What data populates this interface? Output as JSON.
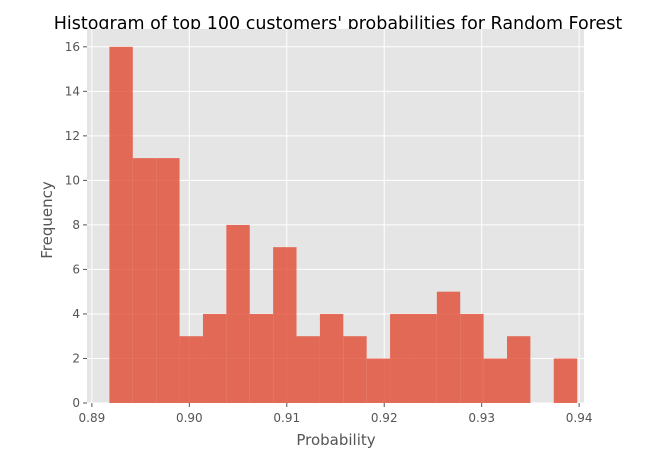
{
  "chart_data": {
    "type": "bar",
    "title": "Histogram of top 100 customers' probabilities for Random Forest",
    "xlabel": "Probability",
    "ylabel": "Frequency",
    "xlim": [
      0.8895,
      0.9405
    ],
    "ylim": [
      0,
      16.8
    ],
    "xticks": [
      0.89,
      0.9,
      0.91,
      0.92,
      0.93,
      0.94
    ],
    "xtick_labels": [
      "0.89",
      "0.90",
      "0.91",
      "0.92",
      "0.93",
      "0.94"
    ],
    "yticks": [
      0,
      2,
      4,
      6,
      8,
      10,
      12,
      14,
      16
    ],
    "ytick_labels": [
      "0",
      "2",
      "4",
      "6",
      "8",
      "10",
      "12",
      "14",
      "16"
    ],
    "bin_edges": [
      0.8918,
      0.8942,
      0.8966,
      0.899,
      0.9014,
      0.9038,
      0.9062,
      0.9086,
      0.911,
      0.9134,
      0.9158,
      0.9182,
      0.9206,
      0.923,
      0.9254,
      0.9278,
      0.9302,
      0.9326,
      0.935,
      0.9374,
      0.9398
    ],
    "values": [
      16,
      11,
      11,
      3,
      4,
      8,
      4,
      7,
      3,
      4,
      3,
      2,
      4,
      4,
      5,
      4,
      2,
      3,
      0,
      2
    ],
    "grid": true,
    "colors": {
      "bar": "#e24a33",
      "bar_opacity": 0.8,
      "plot_background": "#e5e5e5",
      "grid": "#ffffff",
      "text": "#555555",
      "title": "#000000"
    }
  }
}
